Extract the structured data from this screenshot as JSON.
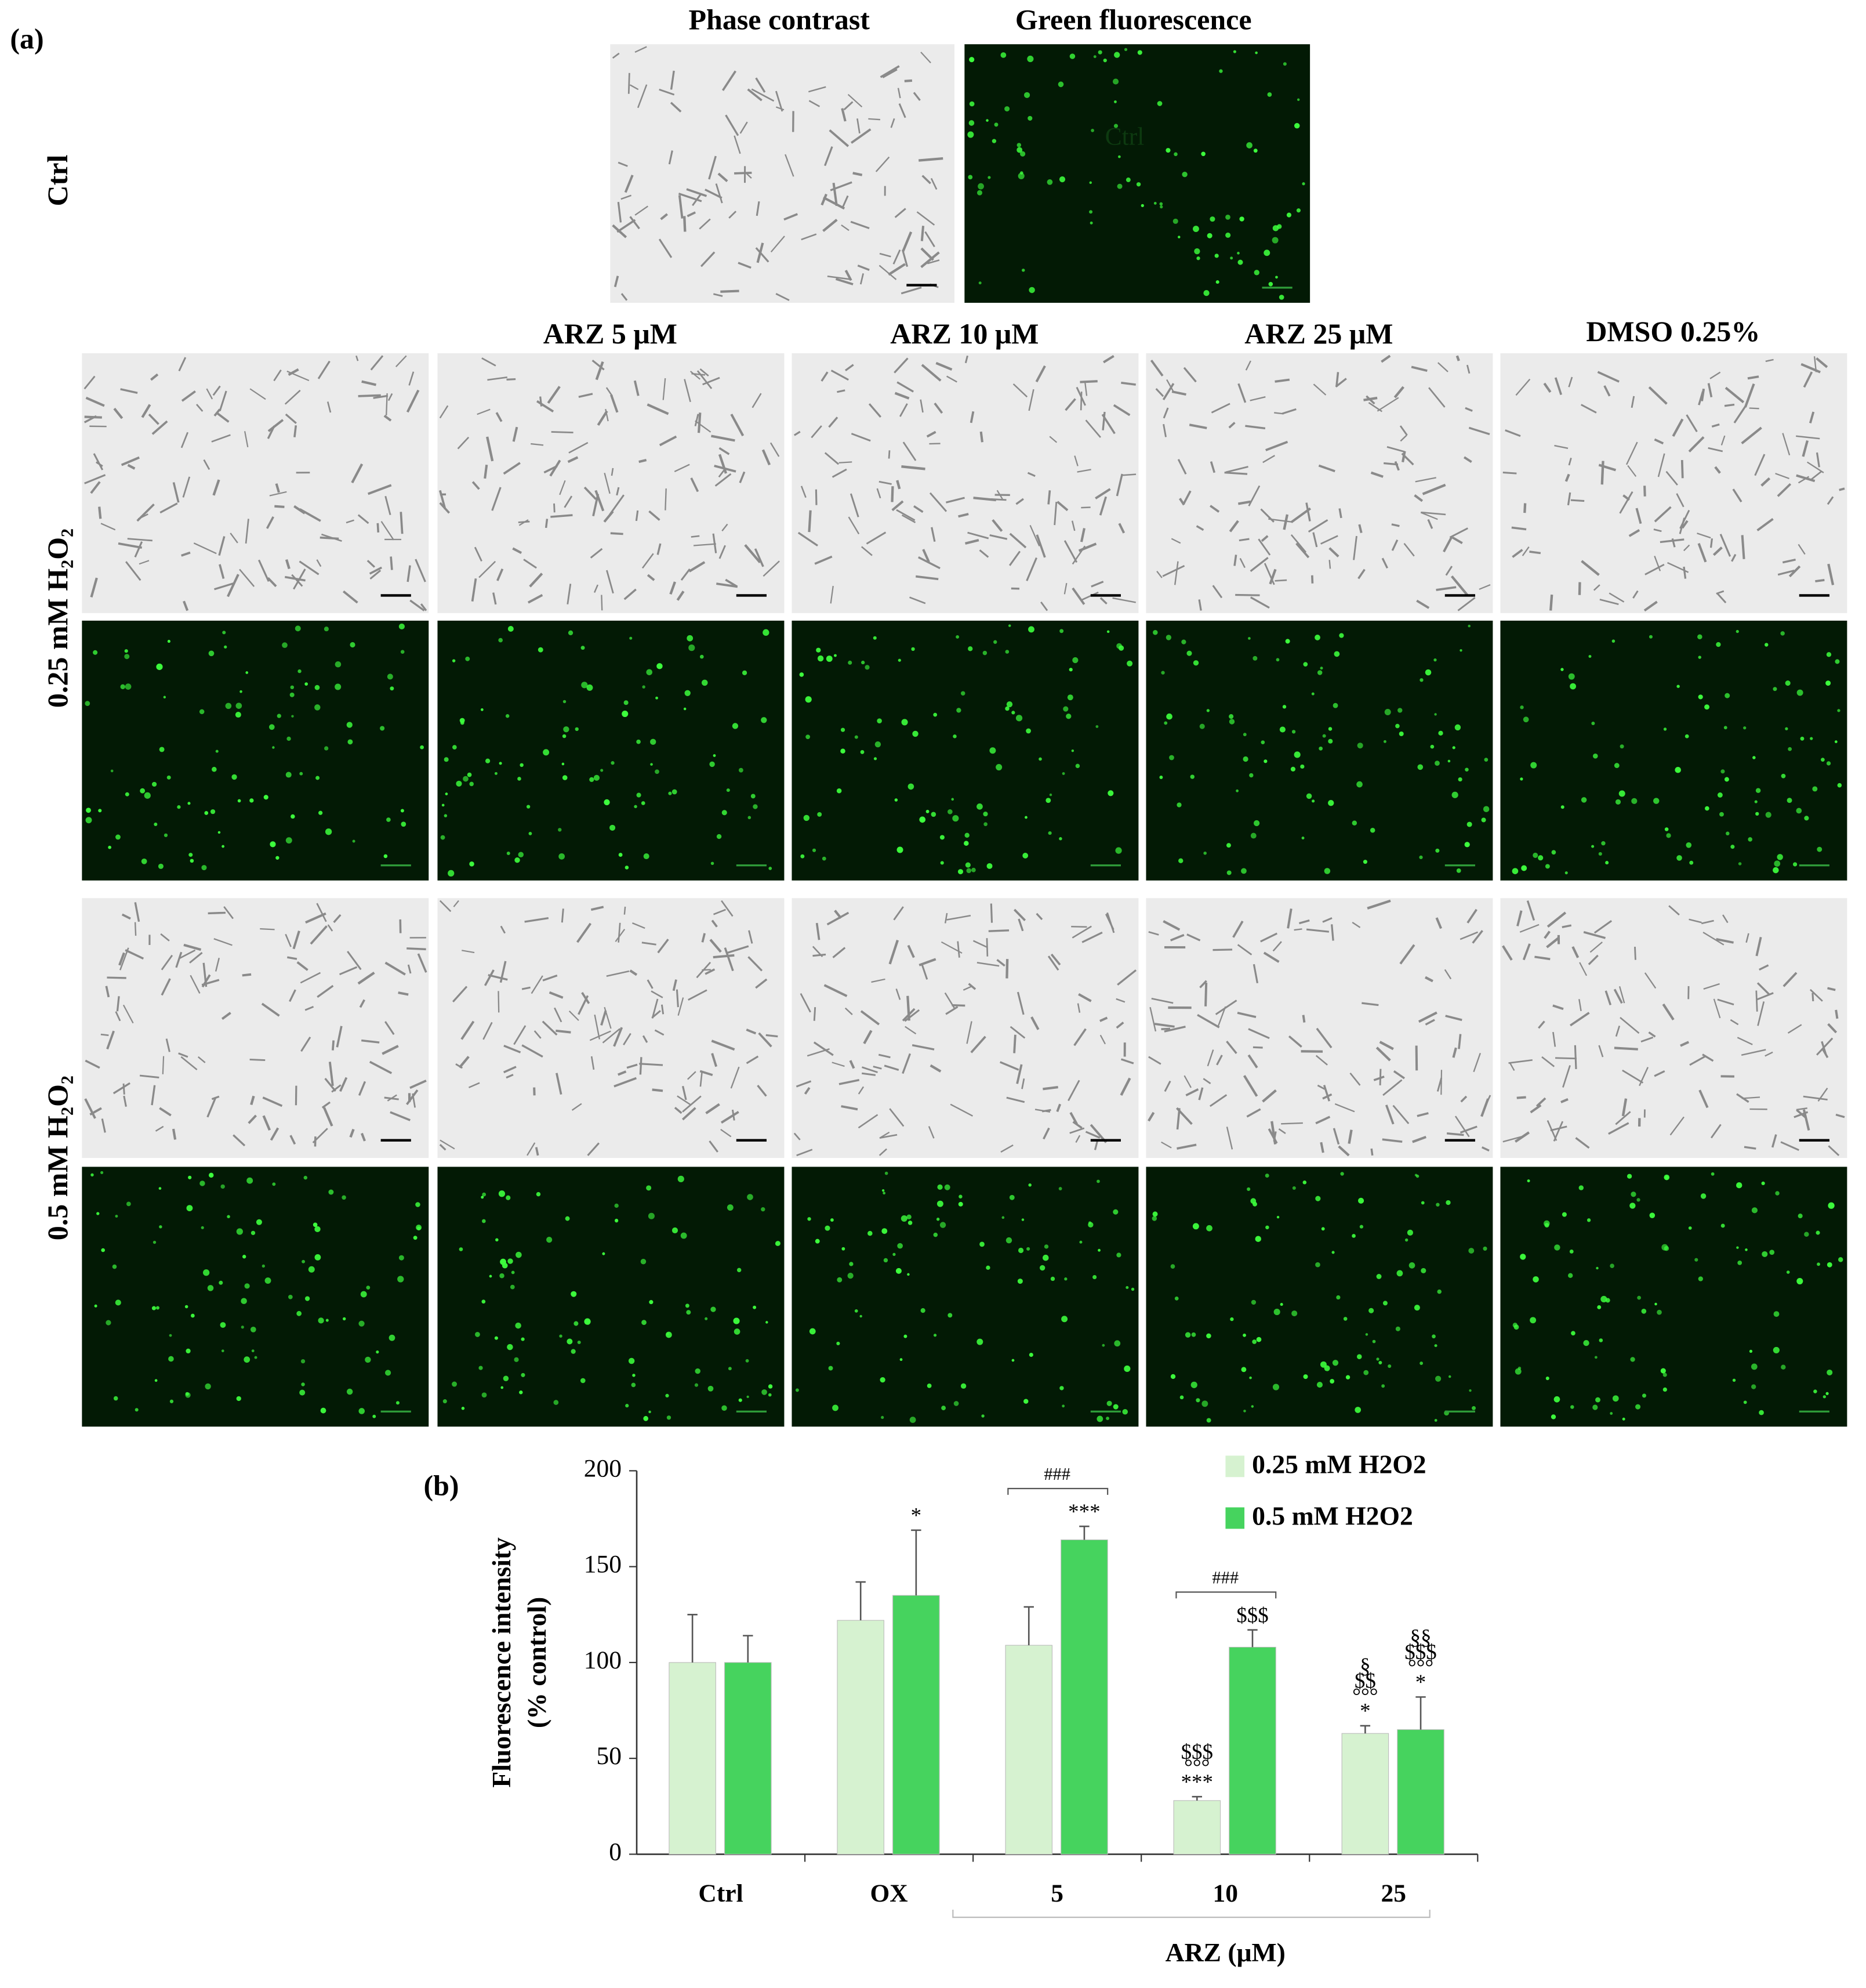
{
  "panel_a": {
    "label": "(a)",
    "top_headers": [
      "Phase contrast",
      "Green fluorescence"
    ],
    "top_row_label": "Ctrl",
    "overlay_text": "Ctrl",
    "column_headers": [
      "ARZ 5 μM",
      "ARZ 10 μM",
      "ARZ 25 μM",
      "DMSO 0.25%"
    ],
    "row_labels": [
      "0.25 mM H₂O₂",
      "0.5 mM H₂O₂"
    ]
  },
  "chart_data": {
    "type": "bar",
    "panel_label": "(b)",
    "ylabel": [
      "Fluorescence intensity",
      "(% control)"
    ],
    "xlabel": "ARZ (μM)",
    "categories": [
      "Ctrl",
      "OX",
      "5",
      "10",
      "25"
    ],
    "series": [
      {
        "name": "0.25 mM H2O2",
        "color": "#d6f2d0",
        "values": [
          100,
          122,
          109,
          28,
          63
        ],
        "errors": [
          25,
          20,
          20,
          2,
          4
        ],
        "significance": [
          null,
          null,
          null,
          [
            "***",
            "°°°",
            "$$$"
          ],
          [
            "*",
            "°°°",
            "$$",
            "§"
          ]
        ]
      },
      {
        "name": "0.5 mM H2O2",
        "color": "#46d35e",
        "values": [
          100,
          135,
          164,
          108,
          65
        ],
        "errors": [
          14,
          34,
          7,
          9,
          17
        ],
        "significance": [
          null,
          [
            "*"
          ],
          [
            "***"
          ],
          [
            "$$$"
          ],
          [
            "*",
            "°°°",
            "$$$",
            "§§"
          ]
        ]
      }
    ],
    "brackets": [
      null,
      null,
      "###",
      "###",
      null
    ],
    "ylim": [
      0,
      200
    ],
    "yticks": [
      0,
      50,
      100,
      150,
      200
    ]
  }
}
